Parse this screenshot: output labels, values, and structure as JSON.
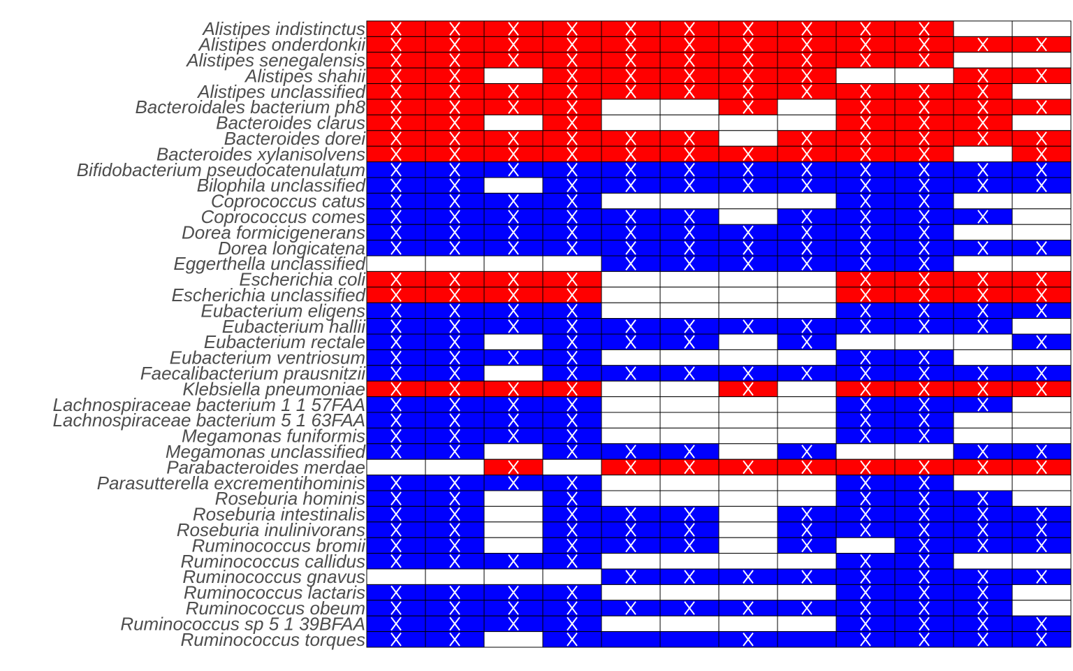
{
  "chart_data": {
    "type": "heatmap",
    "colors": {
      "R": "#ff0000",
      "B": "#0000ff",
      "W": "#ffffff",
      "mark": "#ffffff",
      "grid": "#000000",
      "label": "#4d4d4d"
    },
    "n_columns": 12,
    "rows": [
      {
        "label": "Alistipes indistinctus",
        "cells": [
          "R",
          "R",
          "R",
          "R",
          "R",
          "R",
          "R",
          "R",
          "R",
          "R",
          "W",
          "W"
        ],
        "marks": [
          1,
          1,
          1,
          1,
          1,
          1,
          1,
          1,
          1,
          1,
          0,
          0
        ]
      },
      {
        "label": "Alistipes onderdonkii",
        "cells": [
          "R",
          "R",
          "R",
          "R",
          "R",
          "R",
          "R",
          "R",
          "R",
          "R",
          "R",
          "R"
        ],
        "marks": [
          1,
          1,
          1,
          1,
          1,
          1,
          1,
          1,
          1,
          1,
          1,
          1
        ]
      },
      {
        "label": "Alistipes senegalensis",
        "cells": [
          "R",
          "R",
          "R",
          "R",
          "R",
          "R",
          "R",
          "R",
          "R",
          "R",
          "W",
          "W"
        ],
        "marks": [
          1,
          1,
          1,
          1,
          1,
          1,
          1,
          1,
          1,
          1,
          0,
          0
        ]
      },
      {
        "label": "Alistipes shahii",
        "cells": [
          "R",
          "R",
          "W",
          "R",
          "R",
          "R",
          "R",
          "R",
          "W",
          "W",
          "R",
          "R"
        ],
        "marks": [
          1,
          1,
          0,
          1,
          1,
          1,
          1,
          1,
          0,
          0,
          1,
          1
        ]
      },
      {
        "label": "Alistipes unclassified",
        "cells": [
          "R",
          "R",
          "R",
          "R",
          "R",
          "R",
          "R",
          "R",
          "R",
          "R",
          "R",
          "W"
        ],
        "marks": [
          1,
          1,
          1,
          1,
          1,
          1,
          1,
          1,
          1,
          1,
          1,
          0
        ]
      },
      {
        "label": "Bacteroidales bacterium ph8",
        "cells": [
          "R",
          "R",
          "R",
          "R",
          "W",
          "W",
          "R",
          "W",
          "R",
          "R",
          "R",
          "R"
        ],
        "marks": [
          1,
          1,
          1,
          1,
          0,
          0,
          1,
          0,
          1,
          1,
          1,
          1
        ]
      },
      {
        "label": "Bacteroides clarus",
        "cells": [
          "R",
          "R",
          "W",
          "R",
          "W",
          "W",
          "W",
          "W",
          "R",
          "R",
          "R",
          "W"
        ],
        "marks": [
          1,
          1,
          0,
          1,
          0,
          0,
          0,
          0,
          1,
          1,
          1,
          0
        ]
      },
      {
        "label": "Bacteroides dorei",
        "cells": [
          "R",
          "R",
          "R",
          "R",
          "R",
          "R",
          "W",
          "R",
          "R",
          "R",
          "R",
          "R"
        ],
        "marks": [
          1,
          1,
          1,
          1,
          1,
          1,
          0,
          1,
          1,
          1,
          1,
          1
        ]
      },
      {
        "label": "Bacteroides xylanisolvens",
        "cells": [
          "R",
          "R",
          "R",
          "R",
          "R",
          "R",
          "R",
          "R",
          "R",
          "R",
          "W",
          "R"
        ],
        "marks": [
          1,
          1,
          1,
          1,
          1,
          1,
          1,
          1,
          1,
          1,
          0,
          1
        ]
      },
      {
        "label": "Bifidobacterium pseudocatenulatum",
        "cells": [
          "B",
          "B",
          "B",
          "B",
          "B",
          "B",
          "B",
          "B",
          "B",
          "B",
          "B",
          "B"
        ],
        "marks": [
          1,
          1,
          1,
          1,
          1,
          1,
          1,
          1,
          1,
          1,
          1,
          1
        ]
      },
      {
        "label": "Bilophila unclassified",
        "cells": [
          "B",
          "B",
          "W",
          "B",
          "B",
          "B",
          "B",
          "B",
          "B",
          "B",
          "B",
          "B"
        ],
        "marks": [
          1,
          1,
          0,
          1,
          1,
          1,
          1,
          1,
          1,
          1,
          1,
          1
        ]
      },
      {
        "label": "Coprococcus catus",
        "cells": [
          "B",
          "B",
          "B",
          "B",
          "W",
          "W",
          "W",
          "W",
          "B",
          "B",
          "W",
          "W"
        ],
        "marks": [
          1,
          1,
          1,
          1,
          0,
          0,
          0,
          0,
          1,
          1,
          0,
          0
        ]
      },
      {
        "label": "Coprococcus comes",
        "cells": [
          "B",
          "B",
          "B",
          "B",
          "B",
          "B",
          "W",
          "B",
          "B",
          "B",
          "B",
          "W"
        ],
        "marks": [
          1,
          1,
          1,
          1,
          1,
          1,
          0,
          1,
          1,
          1,
          1,
          0
        ]
      },
      {
        "label": "Dorea formicigenerans",
        "cells": [
          "B",
          "B",
          "B",
          "B",
          "B",
          "B",
          "B",
          "B",
          "B",
          "B",
          "W",
          "W"
        ],
        "marks": [
          1,
          1,
          1,
          1,
          1,
          1,
          1,
          1,
          1,
          1,
          0,
          0
        ]
      },
      {
        "label": "Dorea longicatena",
        "cells": [
          "B",
          "B",
          "B",
          "B",
          "B",
          "B",
          "B",
          "B",
          "B",
          "B",
          "B",
          "B"
        ],
        "marks": [
          1,
          1,
          1,
          1,
          1,
          1,
          1,
          1,
          1,
          1,
          1,
          1
        ]
      },
      {
        "label": "Eggerthella unclassified",
        "cells": [
          "W",
          "W",
          "W",
          "W",
          "B",
          "B",
          "B",
          "B",
          "B",
          "B",
          "W",
          "W"
        ],
        "marks": [
          0,
          0,
          0,
          0,
          1,
          1,
          1,
          1,
          1,
          1,
          0,
          0
        ]
      },
      {
        "label": "Escherichia coli",
        "cells": [
          "R",
          "R",
          "R",
          "R",
          "W",
          "W",
          "W",
          "W",
          "R",
          "R",
          "R",
          "R"
        ],
        "marks": [
          1,
          1,
          1,
          1,
          0,
          0,
          0,
          0,
          1,
          1,
          1,
          1
        ]
      },
      {
        "label": "Escherichia unclassified",
        "cells": [
          "R",
          "R",
          "R",
          "R",
          "W",
          "W",
          "W",
          "W",
          "R",
          "R",
          "R",
          "R"
        ],
        "marks": [
          1,
          1,
          1,
          1,
          0,
          0,
          0,
          0,
          1,
          1,
          1,
          1
        ]
      },
      {
        "label": "Eubacterium eligens",
        "cells": [
          "B",
          "B",
          "B",
          "B",
          "W",
          "W",
          "W",
          "W",
          "B",
          "B",
          "B",
          "B"
        ],
        "marks": [
          1,
          1,
          1,
          1,
          0,
          0,
          0,
          0,
          1,
          1,
          1,
          1
        ]
      },
      {
        "label": "Eubacterium hallii",
        "cells": [
          "B",
          "B",
          "B",
          "B",
          "B",
          "B",
          "B",
          "B",
          "B",
          "B",
          "B",
          "W"
        ],
        "marks": [
          1,
          1,
          1,
          1,
          1,
          1,
          1,
          1,
          1,
          1,
          1,
          0
        ]
      },
      {
        "label": "Eubacterium rectale",
        "cells": [
          "B",
          "B",
          "W",
          "B",
          "B",
          "B",
          "W",
          "B",
          "W",
          "W",
          "W",
          "B"
        ],
        "marks": [
          1,
          1,
          0,
          1,
          1,
          1,
          0,
          1,
          0,
          0,
          0,
          1
        ]
      },
      {
        "label": "Eubacterium ventriosum",
        "cells": [
          "B",
          "B",
          "B",
          "B",
          "W",
          "W",
          "W",
          "W",
          "B",
          "B",
          "W",
          "W"
        ],
        "marks": [
          1,
          1,
          1,
          1,
          0,
          0,
          0,
          0,
          1,
          1,
          0,
          0
        ]
      },
      {
        "label": "Faecalibacterium prausnitzii",
        "cells": [
          "B",
          "B",
          "W",
          "B",
          "B",
          "B",
          "B",
          "B",
          "B",
          "B",
          "B",
          "B"
        ],
        "marks": [
          1,
          1,
          0,
          1,
          1,
          1,
          1,
          1,
          1,
          1,
          1,
          1
        ]
      },
      {
        "label": "Klebsiella pneumoniae",
        "cells": [
          "R",
          "R",
          "R",
          "R",
          "W",
          "W",
          "R",
          "W",
          "R",
          "R",
          "R",
          "R"
        ],
        "marks": [
          1,
          1,
          1,
          1,
          0,
          0,
          1,
          0,
          1,
          1,
          1,
          1
        ]
      },
      {
        "label": "Lachnospiraceae bacterium 1 1 57FAA",
        "cells": [
          "B",
          "B",
          "B",
          "B",
          "W",
          "W",
          "W",
          "W",
          "B",
          "B",
          "B",
          "W"
        ],
        "marks": [
          1,
          1,
          1,
          1,
          0,
          0,
          0,
          0,
          1,
          1,
          1,
          0
        ]
      },
      {
        "label": "Lachnospiraceae bacterium 5 1 63FAA",
        "cells": [
          "B",
          "B",
          "B",
          "B",
          "W",
          "W",
          "W",
          "W",
          "B",
          "B",
          "W",
          "W"
        ],
        "marks": [
          1,
          1,
          1,
          1,
          0,
          0,
          0,
          0,
          1,
          1,
          0,
          0
        ]
      },
      {
        "label": "Megamonas funiformis",
        "cells": [
          "B",
          "B",
          "B",
          "B",
          "W",
          "W",
          "W",
          "W",
          "B",
          "B",
          "W",
          "W"
        ],
        "marks": [
          1,
          1,
          1,
          1,
          0,
          0,
          0,
          0,
          1,
          1,
          0,
          0
        ]
      },
      {
        "label": "Megamonas unclassified",
        "cells": [
          "B",
          "B",
          "W",
          "B",
          "B",
          "B",
          "W",
          "B",
          "W",
          "W",
          "B",
          "B"
        ],
        "marks": [
          1,
          1,
          0,
          1,
          1,
          1,
          0,
          1,
          0,
          0,
          1,
          1
        ]
      },
      {
        "label": "Parabacteroides merdae",
        "cells": [
          "W",
          "W",
          "R",
          "W",
          "R",
          "R",
          "R",
          "R",
          "R",
          "R",
          "R",
          "R"
        ],
        "marks": [
          0,
          0,
          1,
          0,
          1,
          1,
          1,
          1,
          1,
          1,
          1,
          1
        ]
      },
      {
        "label": "Parasutterella excrementihominis",
        "cells": [
          "B",
          "B",
          "B",
          "B",
          "W",
          "W",
          "W",
          "W",
          "B",
          "B",
          "W",
          "W"
        ],
        "marks": [
          1,
          1,
          1,
          1,
          0,
          0,
          0,
          0,
          1,
          1,
          0,
          0
        ]
      },
      {
        "label": "Roseburia hominis",
        "cells": [
          "B",
          "B",
          "W",
          "B",
          "W",
          "W",
          "W",
          "W",
          "B",
          "B",
          "B",
          "W"
        ],
        "marks": [
          1,
          1,
          0,
          1,
          0,
          0,
          0,
          0,
          1,
          1,
          1,
          0
        ]
      },
      {
        "label": "Roseburia intestinalis",
        "cells": [
          "B",
          "B",
          "W",
          "B",
          "B",
          "B",
          "W",
          "B",
          "B",
          "B",
          "B",
          "B"
        ],
        "marks": [
          1,
          1,
          0,
          1,
          1,
          1,
          0,
          1,
          1,
          1,
          1,
          1
        ]
      },
      {
        "label": "Roseburia inulinivorans",
        "cells": [
          "B",
          "B",
          "W",
          "B",
          "B",
          "B",
          "W",
          "B",
          "B",
          "B",
          "B",
          "B"
        ],
        "marks": [
          1,
          1,
          0,
          1,
          1,
          1,
          0,
          1,
          1,
          1,
          1,
          1
        ]
      },
      {
        "label": "Ruminococcus bromii",
        "cells": [
          "B",
          "B",
          "W",
          "B",
          "B",
          "B",
          "W",
          "B",
          "W",
          "B",
          "B",
          "B"
        ],
        "marks": [
          1,
          1,
          0,
          1,
          1,
          1,
          0,
          1,
          0,
          1,
          1,
          1
        ]
      },
      {
        "label": "Ruminococcus callidus",
        "cells": [
          "B",
          "B",
          "B",
          "B",
          "W",
          "W",
          "W",
          "W",
          "B",
          "B",
          "W",
          "W"
        ],
        "marks": [
          1,
          1,
          1,
          1,
          0,
          0,
          0,
          0,
          1,
          1,
          0,
          0
        ]
      },
      {
        "label": "Ruminococcus gnavus",
        "cells": [
          "W",
          "W",
          "W",
          "W",
          "B",
          "B",
          "B",
          "B",
          "B",
          "B",
          "B",
          "B"
        ],
        "marks": [
          0,
          0,
          0,
          0,
          1,
          1,
          1,
          1,
          1,
          1,
          1,
          1
        ]
      },
      {
        "label": "Ruminococcus lactaris",
        "cells": [
          "B",
          "B",
          "B",
          "B",
          "W",
          "W",
          "W",
          "W",
          "B",
          "B",
          "B",
          "W"
        ],
        "marks": [
          1,
          1,
          1,
          1,
          0,
          0,
          0,
          0,
          1,
          1,
          1,
          0
        ]
      },
      {
        "label": "Ruminococcus obeum",
        "cells": [
          "B",
          "B",
          "B",
          "B",
          "B",
          "B",
          "B",
          "B",
          "B",
          "B",
          "B",
          "W"
        ],
        "marks": [
          1,
          1,
          1,
          1,
          1,
          1,
          1,
          1,
          1,
          1,
          1,
          0
        ]
      },
      {
        "label": "Ruminococcus sp 5 1 39BFAA",
        "cells": [
          "B",
          "B",
          "B",
          "B",
          "W",
          "W",
          "W",
          "W",
          "B",
          "B",
          "B",
          "B"
        ],
        "marks": [
          1,
          1,
          1,
          1,
          0,
          0,
          0,
          0,
          1,
          1,
          1,
          1
        ]
      },
      {
        "label": "Ruminococcus torques",
        "cells": [
          "B",
          "B",
          "W",
          "B",
          "B",
          "B",
          "B",
          "B",
          "B",
          "B",
          "B",
          "B"
        ],
        "marks": [
          1,
          1,
          0,
          1,
          0,
          0,
          1,
          0,
          1,
          1,
          1,
          1
        ]
      }
    ]
  }
}
